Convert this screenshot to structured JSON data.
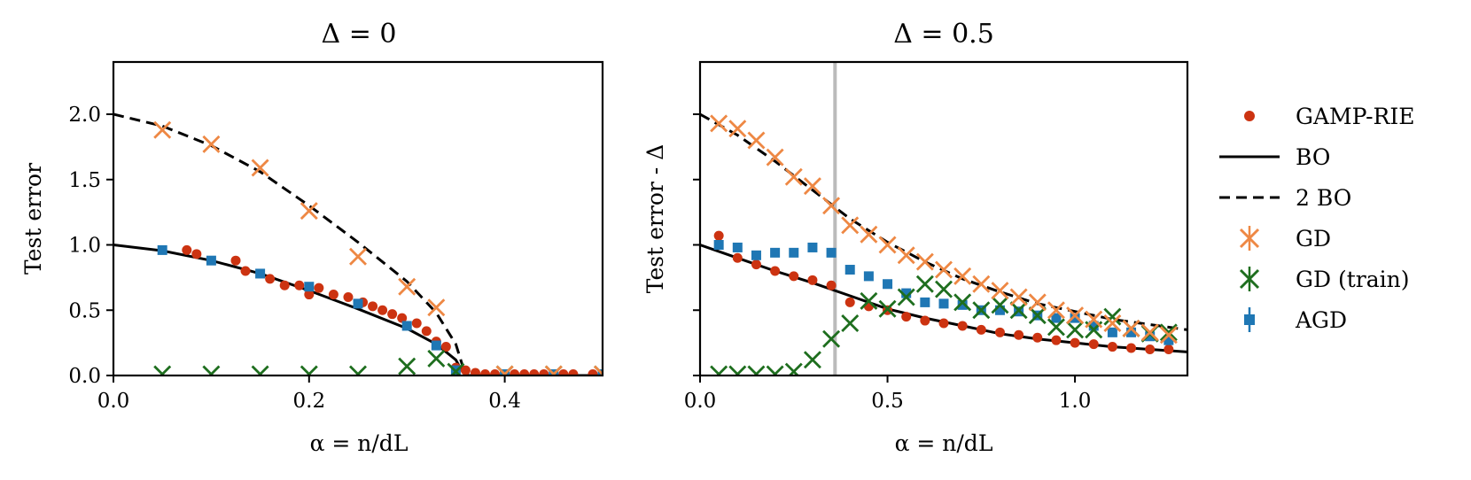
{
  "colors": {
    "gamp": "#cc3311",
    "gd": "#ee8844",
    "gd_train": "#1e6e1e",
    "agd": "#1f77b4",
    "bo": "#000000",
    "threshold": "#bbbbbb"
  },
  "legend": {
    "position": "right",
    "entries": [
      {
        "label": "GAMP-RIE",
        "marker": "dot",
        "color": "#cc3311"
      },
      {
        "label": "BO",
        "marker": "solid-line",
        "color": "#000000"
      },
      {
        "label": "2 BO",
        "marker": "dashed-line",
        "color": "#000000"
      },
      {
        "label": "GD",
        "marker": "x-errorbar",
        "color": "#ee8844"
      },
      {
        "label": "GD (train)",
        "marker": "x-errorbar",
        "color": "#1e6e1e"
      },
      {
        "label": "AGD",
        "marker": "square-errorbar",
        "color": "#1f77b4"
      }
    ]
  },
  "chart_data": [
    {
      "type": "scatter",
      "title": "Δ = 0",
      "xlabel": "α = n/dL",
      "ylabel": "Test error",
      "xlim": [
        0,
        0.5
      ],
      "ylim": [
        0,
        2.4
      ],
      "xticks": [
        0.0,
        0.2,
        0.4
      ],
      "xtick_labels": [
        "0.0",
        "0.2",
        "0.4"
      ],
      "yticks": [
        0.0,
        0.5,
        1.0,
        1.5,
        2.0
      ],
      "ytick_labels": [
        "0.0",
        "0.5",
        "1.0",
        "1.5",
        "2.0"
      ],
      "lines": [
        {
          "name": "BO",
          "style": "solid",
          "x": [
            0,
            0.05,
            0.1,
            0.15,
            0.2,
            0.25,
            0.3,
            0.33,
            0.35,
            0.355,
            0.36,
            0.5
          ],
          "y": [
            1.0,
            0.955,
            0.88,
            0.78,
            0.65,
            0.51,
            0.36,
            0.24,
            0.12,
            0.05,
            0.0,
            0.0
          ]
        },
        {
          "name": "2 BO",
          "style": "dashed",
          "x": [
            0,
            0.05,
            0.1,
            0.15,
            0.2,
            0.25,
            0.3,
            0.33,
            0.35,
            0.36
          ],
          "y": [
            2.0,
            1.91,
            1.76,
            1.56,
            1.3,
            1.02,
            0.72,
            0.48,
            0.24,
            0.0
          ]
        }
      ],
      "series": [
        {
          "name": "GAMP-RIE",
          "marker": "dot",
          "x": [
            0.075,
            0.085,
            0.125,
            0.135,
            0.16,
            0.175,
            0.19,
            0.2,
            0.21,
            0.225,
            0.24,
            0.255,
            0.265,
            0.275,
            0.285,
            0.295,
            0.31,
            0.32,
            0.33,
            0.34,
            0.35,
            0.36,
            0.37,
            0.38,
            0.39,
            0.41,
            0.42,
            0.43,
            0.44,
            0.46,
            0.47,
            0.49
          ],
          "y": [
            0.96,
            0.93,
            0.88,
            0.8,
            0.74,
            0.69,
            0.69,
            0.62,
            0.67,
            0.62,
            0.6,
            0.56,
            0.53,
            0.5,
            0.47,
            0.44,
            0.4,
            0.34,
            0.26,
            0.22,
            0.06,
            0.04,
            0.02,
            0.01,
            0.01,
            0.01,
            0.01,
            0.01,
            0.01,
            0.01,
            0.01,
            0.01
          ]
        },
        {
          "name": "GD",
          "marker": "x",
          "x": [
            0.05,
            0.1,
            0.15,
            0.2,
            0.25,
            0.3,
            0.33,
            0.4,
            0.45,
            0.5
          ],
          "y": [
            1.88,
            1.77,
            1.59,
            1.26,
            0.91,
            0.68,
            0.52,
            0.01,
            0.01,
            0.01
          ]
        },
        {
          "name": "GD (train)",
          "marker": "x",
          "x": [
            0.05,
            0.1,
            0.15,
            0.2,
            0.25,
            0.3,
            0.33,
            0.35,
            0.4,
            0.45,
            0.5
          ],
          "y": [
            0.01,
            0.01,
            0.01,
            0.01,
            0.01,
            0.07,
            0.13,
            0.03,
            0.01,
            0.01,
            0.01
          ]
        },
        {
          "name": "AGD",
          "marker": "square",
          "x": [
            0.05,
            0.1,
            0.15,
            0.2,
            0.25,
            0.3,
            0.33,
            0.35,
            0.4,
            0.45,
            0.5
          ],
          "y": [
            0.96,
            0.88,
            0.78,
            0.68,
            0.55,
            0.38,
            0.23,
            0.04,
            0.01,
            0.01,
            0.01
          ]
        }
      ]
    },
    {
      "type": "scatter",
      "title": "Δ = 0.5",
      "xlabel": "α = n/dL",
      "ylabel": "Test error - Δ",
      "xlim": [
        0,
        1.3
      ],
      "ylim": [
        0,
        2.4
      ],
      "xticks": [
        0.0,
        0.5,
        1.0
      ],
      "xtick_labels": [
        "0.0",
        "0.5",
        "1.0"
      ],
      "yticks": [
        0.0,
        0.5,
        1.0,
        1.5,
        2.0
      ],
      "ytick_labels": [
        "",
        "",
        "",
        "",
        ""
      ],
      "vline_x": 0.36,
      "lines": [
        {
          "name": "BO",
          "style": "solid",
          "x": [
            0,
            0.1,
            0.2,
            0.3,
            0.4,
            0.5,
            0.6,
            0.7,
            0.8,
            0.9,
            1.0,
            1.1,
            1.2,
            1.3
          ],
          "y": [
            1.0,
            0.9,
            0.8,
            0.71,
            0.61,
            0.51,
            0.44,
            0.38,
            0.32,
            0.28,
            0.25,
            0.22,
            0.2,
            0.18
          ]
        },
        {
          "name": "2 BO",
          "style": "dashed",
          "x": [
            0,
            0.1,
            0.2,
            0.3,
            0.4,
            0.5,
            0.6,
            0.7,
            0.8,
            0.9,
            1.0,
            1.1,
            1.2,
            1.3
          ],
          "y": [
            2.0,
            1.84,
            1.64,
            1.42,
            1.2,
            1.02,
            0.87,
            0.74,
            0.64,
            0.55,
            0.49,
            0.43,
            0.39,
            0.35
          ]
        }
      ],
      "series": [
        {
          "name": "GAMP-RIE",
          "marker": "dot",
          "x": [
            0.05,
            0.1,
            0.15,
            0.2,
            0.25,
            0.3,
            0.35,
            0.4,
            0.45,
            0.5,
            0.55,
            0.6,
            0.65,
            0.7,
            0.75,
            0.8,
            0.85,
            0.9,
            0.95,
            1.0,
            1.05,
            1.1,
            1.15,
            1.2,
            1.25
          ],
          "y": [
            1.07,
            0.9,
            0.85,
            0.8,
            0.76,
            0.73,
            0.69,
            0.56,
            0.53,
            0.5,
            0.45,
            0.42,
            0.4,
            0.38,
            0.35,
            0.33,
            0.31,
            0.29,
            0.27,
            0.25,
            0.24,
            0.22,
            0.21,
            0.2,
            0.2
          ]
        },
        {
          "name": "GD",
          "marker": "x",
          "x": [
            0.05,
            0.1,
            0.15,
            0.2,
            0.25,
            0.3,
            0.35,
            0.4,
            0.45,
            0.5,
            0.55,
            0.6,
            0.65,
            0.7,
            0.75,
            0.8,
            0.85,
            0.9,
            0.95,
            1.0,
            1.05,
            1.1,
            1.15,
            1.2,
            1.25
          ],
          "y": [
            1.93,
            1.89,
            1.8,
            1.67,
            1.52,
            1.45,
            1.3,
            1.15,
            1.08,
            1.0,
            0.92,
            0.87,
            0.81,
            0.76,
            0.7,
            0.65,
            0.6,
            0.56,
            0.5,
            0.46,
            0.43,
            0.4,
            0.36,
            0.33,
            0.31
          ]
        },
        {
          "name": "GD (train)",
          "marker": "x",
          "x": [
            0.05,
            0.1,
            0.15,
            0.2,
            0.25,
            0.3,
            0.35,
            0.4,
            0.45,
            0.5,
            0.55,
            0.6,
            0.65,
            0.7,
            0.75,
            0.8,
            0.85,
            0.9,
            0.95,
            1.0,
            1.05,
            1.1,
            1.15,
            1.2,
            1.25
          ],
          "y": [
            0.01,
            0.01,
            0.01,
            0.01,
            0.03,
            0.12,
            0.28,
            0.4,
            0.57,
            0.51,
            0.6,
            0.7,
            0.66,
            0.56,
            0.5,
            0.54,
            0.5,
            0.46,
            0.37,
            0.35,
            0.35,
            0.45,
            0.36,
            0.32,
            0.33
          ]
        },
        {
          "name": "AGD",
          "marker": "square",
          "x": [
            0.05,
            0.1,
            0.15,
            0.2,
            0.25,
            0.3,
            0.35,
            0.4,
            0.45,
            0.5,
            0.55,
            0.6,
            0.65,
            0.7,
            0.75,
            0.8,
            0.85,
            0.9,
            0.95,
            1.0,
            1.05,
            1.1,
            1.15,
            1.2,
            1.25
          ],
          "y": [
            1.0,
            0.98,
            0.92,
            0.94,
            0.94,
            0.98,
            0.94,
            0.81,
            0.76,
            0.7,
            0.63,
            0.56,
            0.55,
            0.54,
            0.5,
            0.5,
            0.49,
            0.46,
            0.44,
            0.44,
            0.38,
            0.33,
            0.33,
            0.3,
            0.27
          ]
        }
      ]
    }
  ]
}
